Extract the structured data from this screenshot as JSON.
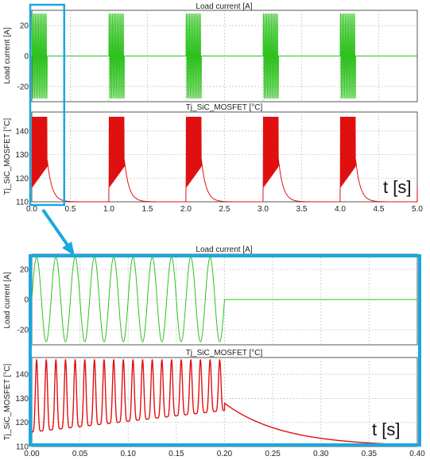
{
  "chart_data": [
    {
      "type": "line",
      "title": "Load current [A]",
      "ylabel": "Load current [A]",
      "xlim": [
        0,
        5
      ],
      "ylim": [
        -30,
        30
      ],
      "yticks": [
        -20,
        0,
        20
      ],
      "grid": true,
      "color": "#2fc21f",
      "series": [
        {
          "kind": "burst",
          "amplitude": 28,
          "period": 1.0,
          "on_duration": 0.2,
          "frequency_hz": 50
        }
      ]
    },
    {
      "type": "line",
      "title": "Tj_SiC_MOSFET [°C]",
      "ylabel": "Tj_SiC_MOSFET [°C]",
      "xlim": [
        0,
        5
      ],
      "ylim": [
        110,
        148
      ],
      "yticks": [
        110,
        120,
        130,
        140
      ],
      "xticks": [
        "0.0",
        "0.5",
        "1.0",
        "1.5",
        "2.0",
        "2.5",
        "3.0",
        "3.5",
        "4.0",
        "4.5",
        "5.0"
      ],
      "grid": true,
      "color": "#e01010",
      "annotation": "t [s]",
      "series": [
        {
          "kind": "thermal",
          "base_temperature": 110,
          "peak_temperature": 146,
          "ripple_low_start": 116,
          "ripple_low_end": 125,
          "cooldown_end_at_1s": 110.5
        }
      ]
    },
    {
      "type": "line",
      "title": "Load current [A]",
      "ylabel": "Load current [A]",
      "xlim": [
        0,
        0.4
      ],
      "ylim": [
        -30,
        30
      ],
      "yticks": [
        -20,
        0,
        20
      ],
      "grid": true,
      "color": "#2fc21f",
      "series": [
        {
          "kind": "burst",
          "amplitude": 28,
          "period": 1.0,
          "on_duration": 0.2,
          "frequency_hz": 50
        }
      ]
    },
    {
      "type": "line",
      "title": "Tj_SiC_MOSFET [°C]",
      "ylabel": "Tj_SiC_MOSFET [°C]",
      "xlim": [
        0,
        0.4
      ],
      "ylim": [
        110,
        147
      ],
      "yticks": [
        110,
        120,
        130,
        140
      ],
      "xticks": [
        "0.00",
        "0.05",
        "0.10",
        "0.15",
        "0.20",
        "0.25",
        "0.30",
        "0.35",
        "0.40"
      ],
      "grid": true,
      "color": "#e01010",
      "annotation": "t [s]",
      "series": [
        {
          "kind": "thermal",
          "base_temperature": 110,
          "peak_temperature": 146,
          "ripple_low_start": 116,
          "ripple_low_end": 125,
          "cooldown_end_at_0_4s": 111
        }
      ]
    }
  ],
  "zoom": {
    "highlight_color": "#19a8df",
    "zoomed_range": [
      0,
      0.4
    ]
  }
}
